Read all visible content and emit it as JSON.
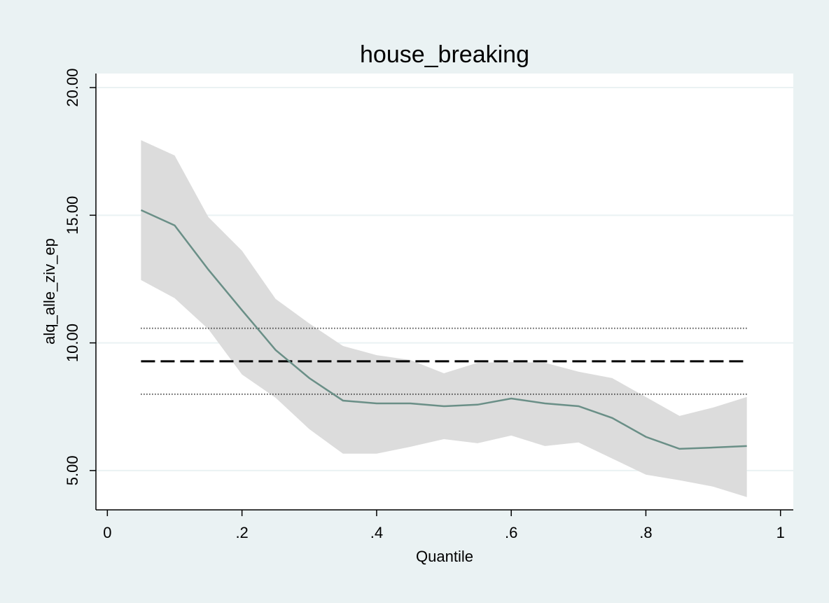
{
  "chart_data": {
    "type": "quantile_band",
    "title": "house_breaking",
    "x_label": "Quantile",
    "y_label": "alq_alle_ziv_ep",
    "x": [
      0.05,
      0.1,
      0.15,
      0.2,
      0.25,
      0.3,
      0.35,
      0.4,
      0.45,
      0.5,
      0.55,
      0.6,
      0.65,
      0.7,
      0.75,
      0.8,
      0.85,
      0.9,
      0.95
    ],
    "estimate": [
      15.2,
      14.6,
      12.87,
      11.28,
      9.72,
      8.62,
      7.74,
      7.63,
      7.63,
      7.52,
      7.58,
      7.82,
      7.63,
      7.52,
      7.06,
      6.32,
      5.85,
      5.9,
      5.96
    ],
    "ci_upper": [
      17.94,
      17.34,
      14.93,
      13.61,
      11.72,
      10.76,
      9.88,
      9.52,
      9.33,
      8.81,
      9.22,
      9.25,
      9.22,
      8.87,
      8.62,
      7.88,
      7.14,
      7.47,
      7.88
    ],
    "ci_lower": [
      12.46,
      11.75,
      10.54,
      8.76,
      7.85,
      6.62,
      5.66,
      5.66,
      5.93,
      6.23,
      6.07,
      6.37,
      5.96,
      6.1,
      5.47,
      4.84,
      4.62,
      4.37,
      3.96
    ],
    "ols": {
      "estimate": 9.28,
      "ci_upper": 10.57,
      "ci_lower": 7.99
    },
    "estimate_color": "#6a8f87",
    "band_color": "#dcdcdc",
    "ols_color": "#000000",
    "xlim": [
      -0.017,
      1.019
    ],
    "ylim": [
      3.46,
      20.55
    ],
    "xticks": [
      0,
      {
        "value": 0.2,
        "label": ".2"
      },
      {
        "value": 0.4,
        "label": ".4"
      },
      {
        "value": 0.6,
        "label": ".6"
      },
      {
        "value": 0.8,
        "label": ".8"
      },
      1
    ],
    "yticks": [
      {
        "value": 5,
        "label": "5.00"
      },
      {
        "value": 10,
        "label": "10.00"
      },
      {
        "value": 15,
        "label": "15.00"
      },
      {
        "value": 20,
        "label": "20.00"
      }
    ],
    "grid": true
  }
}
